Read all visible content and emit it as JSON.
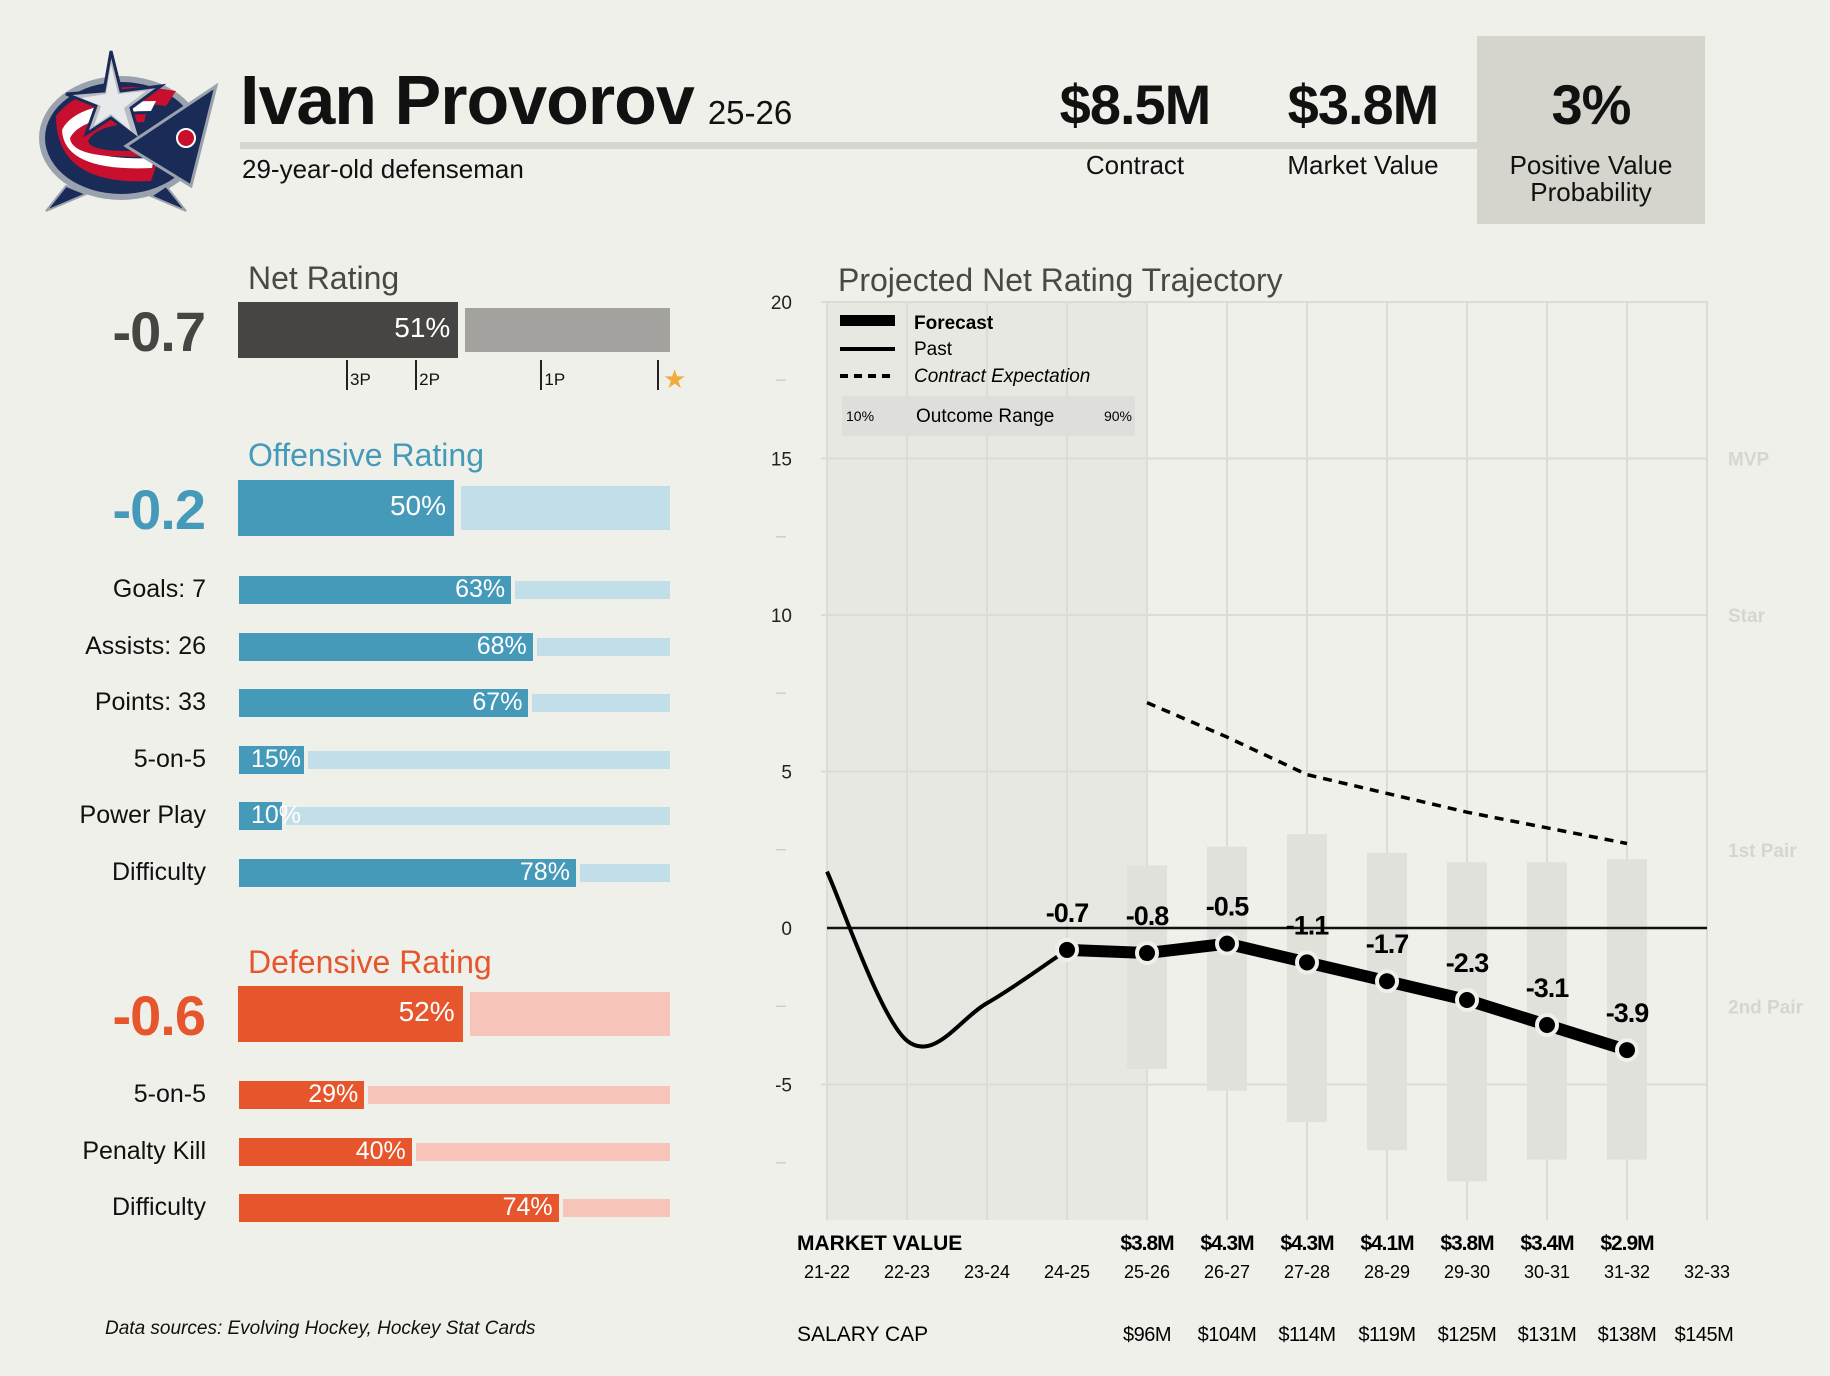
{
  "header": {
    "team_logo": "columbus-blue-jackets-logo",
    "player_name": "Ivan Provorov",
    "season": "25-26",
    "subtitle": "29-year-old defenseman",
    "stats": [
      {
        "value": "$8.5M",
        "label": "Contract"
      },
      {
        "value": "$3.8M",
        "label": "Market Value"
      },
      {
        "value": "3%",
        "label_line1": "Positive Value",
        "label_line2": "Probability"
      }
    ]
  },
  "net_rating": {
    "title": "Net Rating",
    "value": "-0.7",
    "percentile": 51,
    "percentile_label": "51%",
    "tier_marks": [
      {
        "label": "3P",
        "pct": 25
      },
      {
        "label": "2P",
        "pct": 41
      },
      {
        "label": "1P",
        "pct": 70
      },
      {
        "label": "★",
        "pct": 97,
        "icon": "star-icon"
      }
    ],
    "colors": {
      "fill": "#474543",
      "rest": "#a3a29f",
      "text": "#474543",
      "star": "#f0ac3c"
    }
  },
  "offensive": {
    "title": "Offensive Rating",
    "value": "-0.2",
    "percentile": 50,
    "percentile_label": "50%",
    "colors": {
      "fill": "#4599b9",
      "rest": "#c2dee8",
      "title": "#4599b9"
    },
    "rows": [
      {
        "label": "Goals: 7",
        "pct": 63,
        "pct_label": "63%"
      },
      {
        "label": "Assists: 26",
        "pct": 68,
        "pct_label": "68%"
      },
      {
        "label": "Points: 33",
        "pct": 67,
        "pct_label": "67%"
      },
      {
        "label": "5-on-5",
        "pct": 15,
        "pct_label": "15%"
      },
      {
        "label": "Power Play",
        "pct": 10,
        "pct_label": "10%"
      },
      {
        "label": "Difficulty",
        "pct": 78,
        "pct_label": "78%"
      }
    ]
  },
  "defensive": {
    "title": "Defensive Rating",
    "value": "-0.6",
    "percentile": 52,
    "percentile_label": "52%",
    "colors": {
      "fill": "#e6552b",
      "rest": "#f6c4b9",
      "title": "#e6552b"
    },
    "rows": [
      {
        "label": "5-on-5",
        "pct": 29,
        "pct_label": "29%"
      },
      {
        "label": "Penalty Kill",
        "pct": 40,
        "pct_label": "40%"
      },
      {
        "label": "Difficulty",
        "pct": 74,
        "pct_label": "74%"
      }
    ]
  },
  "footer": {
    "note": "Data sources: Evolving Hockey, Hockey Stat Cards"
  },
  "chart_data": {
    "type": "line",
    "title": "Projected Net Rating Trajectory",
    "xlabel": "",
    "ylabel": "",
    "x": [
      "21-22",
      "22-23",
      "23-24",
      "24-25",
      "25-26",
      "26-27",
      "27-28",
      "28-29",
      "29-30",
      "30-31",
      "31-32",
      "32-33"
    ],
    "ylim": [
      -8.7,
      20
    ],
    "yticks": [
      20,
      15,
      10,
      5,
      0,
      -5
    ],
    "grid": true,
    "legend": {
      "placement": "top-left",
      "items": [
        {
          "label": "Forecast",
          "style": "thick"
        },
        {
          "label": "Past",
          "style": "solid"
        },
        {
          "label": "Contract Expectation",
          "style": "dashed"
        }
      ],
      "range_label": "Outcome Range",
      "range_low": "10%",
      "range_high": "90%"
    },
    "series": [
      {
        "name": "Past",
        "x": [
          "21-22",
          "22-23",
          "23-24",
          "24-25"
        ],
        "values": [
          1.8,
          -3.6,
          -2.4,
          -0.7
        ]
      },
      {
        "name": "Forecast",
        "x": [
          "24-25",
          "25-26",
          "26-27",
          "27-28",
          "28-29",
          "29-30",
          "30-31",
          "31-32"
        ],
        "values": [
          -0.7,
          -0.8,
          -0.5,
          -1.1,
          -1.7,
          -2.3,
          -3.1,
          -3.9
        ],
        "labels": [
          "-0.7",
          "-0.8",
          "-0.5",
          "-1.1",
          "-1.7",
          "-2.3",
          "-3.1",
          "-3.9"
        ]
      },
      {
        "name": "Contract Expectation",
        "x": [
          "25-26",
          "26-27",
          "27-28",
          "28-29",
          "29-30",
          "30-31",
          "31-32"
        ],
        "values": [
          7.2,
          6.1,
          4.9,
          4.3,
          3.7,
          3.2,
          2.7
        ]
      }
    ],
    "outcome_range": {
      "x": [
        "25-26",
        "26-27",
        "27-28",
        "28-29",
        "29-30",
        "30-31",
        "31-32"
      ],
      "p10": [
        -4.5,
        -5.2,
        -6.2,
        -7.1,
        -8.1,
        -7.4,
        -7.4
      ],
      "p90": [
        2.0,
        2.6,
        3.0,
        2.4,
        2.1,
        2.1,
        2.2
      ]
    },
    "past_shaded_through": "24-25",
    "tier_labels": [
      {
        "label": "MVP",
        "y": 15
      },
      {
        "label": "Star",
        "y": 10
      },
      {
        "label": "1st Pair",
        "y": 2.5
      },
      {
        "label": "2nd Pair",
        "y": -2.5
      }
    ],
    "market_value": {
      "label": "MARKET VALUE",
      "x": [
        "25-26",
        "26-27",
        "27-28",
        "28-29",
        "29-30",
        "30-31",
        "31-32"
      ],
      "values": [
        "$3.8M",
        "$4.3M",
        "$4.3M",
        "$4.1M",
        "$3.8M",
        "$3.4M",
        "$2.9M"
      ]
    },
    "salary_cap": {
      "label": "SALARY CAP",
      "x": [
        "25-26",
        "26-27",
        "27-28",
        "28-29",
        "29-30",
        "30-31",
        "31-32",
        "32-33"
      ],
      "values": [
        "$96M",
        "$104M",
        "$114M",
        "$119M",
        "$125M",
        "$131M",
        "$138M",
        "$145M"
      ]
    }
  }
}
